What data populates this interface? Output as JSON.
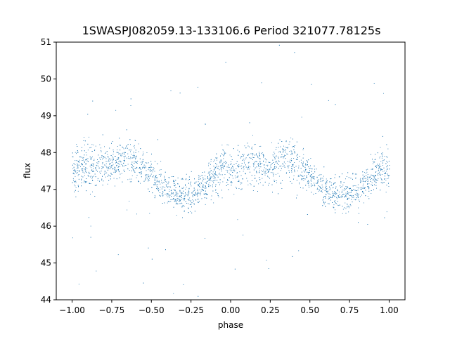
{
  "chart_data": {
    "type": "scatter",
    "title": "1SWASPJ082059.13-133106.6 Period 321077.78125s",
    "xlabel": "phase",
    "ylabel": "flux",
    "xlim": [
      -1.1,
      1.1
    ],
    "ylim": [
      44,
      51
    ],
    "xticks": [
      -1.0,
      -0.75,
      -0.5,
      -0.25,
      0.0,
      0.25,
      0.5,
      0.75,
      1.0
    ],
    "xtick_labels": [
      "−1.00",
      "−0.75",
      "−0.50",
      "−0.25",
      "0.00",
      "0.25",
      "0.50",
      "0.75",
      "1.00"
    ],
    "yticks": [
      44,
      45,
      46,
      47,
      48,
      49,
      50,
      51
    ],
    "ytick_labels": [
      "44",
      "45",
      "46",
      "47",
      "48",
      "49",
      "50",
      "51"
    ],
    "grid": false,
    "marker_color": "#1f77b4",
    "series": [
      {
        "x": [
          -1.0,
          -0.95,
          -0.9,
          -0.85,
          -0.8,
          -0.75,
          -0.7,
          -0.65,
          -0.6,
          -0.55,
          -0.5,
          -0.45,
          -0.4,
          -0.35,
          -0.3,
          -0.25,
          -0.2,
          -0.15,
          -0.1,
          -0.05,
          0.0,
          0.05,
          0.1,
          0.15,
          0.2,
          0.25,
          0.3,
          0.35,
          0.4,
          0.45,
          0.5,
          0.55,
          0.6,
          0.65,
          0.7,
          0.75,
          0.8,
          0.85,
          0.9,
          0.95,
          1.0
        ],
        "y": [
          47.5,
          47.6,
          47.7,
          47.6,
          47.7,
          47.6,
          47.8,
          47.9,
          47.8,
          47.6,
          47.4,
          47.2,
          47.0,
          46.9,
          46.8,
          46.9,
          47.0,
          47.2,
          47.4,
          47.6,
          47.5,
          47.6,
          47.7,
          47.6,
          47.7,
          47.6,
          47.8,
          47.9,
          47.8,
          47.6,
          47.4,
          47.2,
          47.0,
          46.9,
          46.8,
          46.9,
          47.0,
          47.2,
          47.4,
          47.6,
          47.5
        ],
        "spread": [
          0.5,
          0.55,
          0.6,
          0.55,
          0.5,
          0.45,
          0.5,
          0.55,
          0.5,
          0.45,
          0.4,
          0.4,
          0.4,
          0.45,
          0.45,
          0.45,
          0.4,
          0.45,
          0.5,
          0.55,
          0.5,
          0.55,
          0.6,
          0.55,
          0.5,
          0.45,
          0.5,
          0.55,
          0.5,
          0.45,
          0.4,
          0.4,
          0.4,
          0.45,
          0.45,
          0.45,
          0.4,
          0.45,
          0.5,
          0.55,
          0.5
        ]
      }
    ]
  }
}
